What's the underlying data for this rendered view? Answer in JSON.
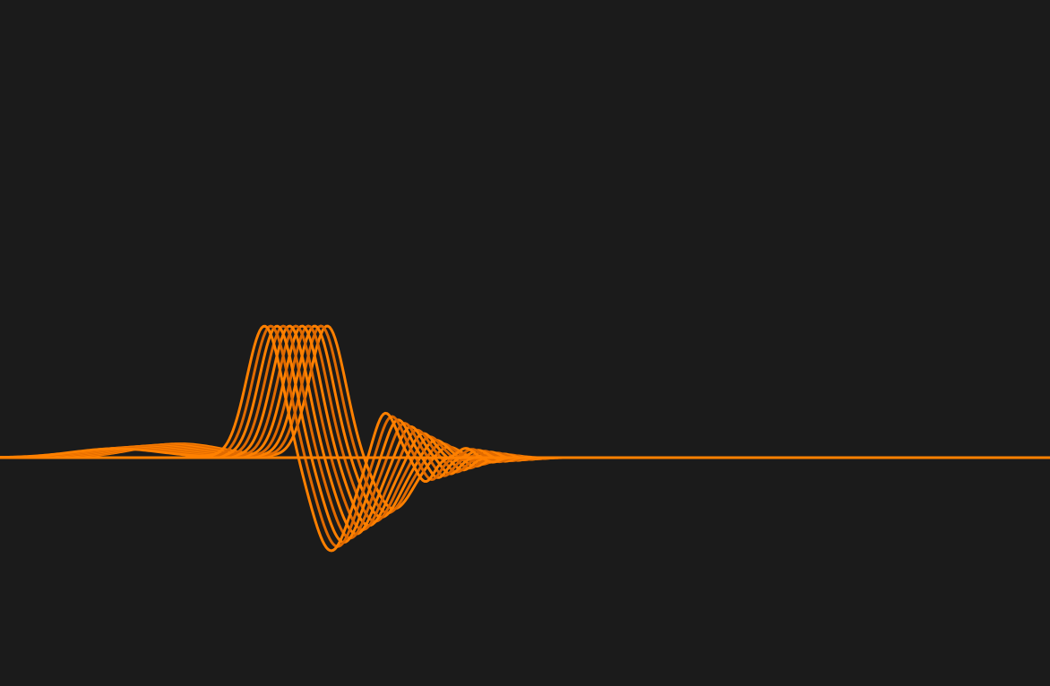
{
  "scene": {
    "background_color": "#1b1b1b",
    "wave_color": "#ff8000",
    "wave_shade_color": "#e06a00",
    "strand_count": 11
  }
}
